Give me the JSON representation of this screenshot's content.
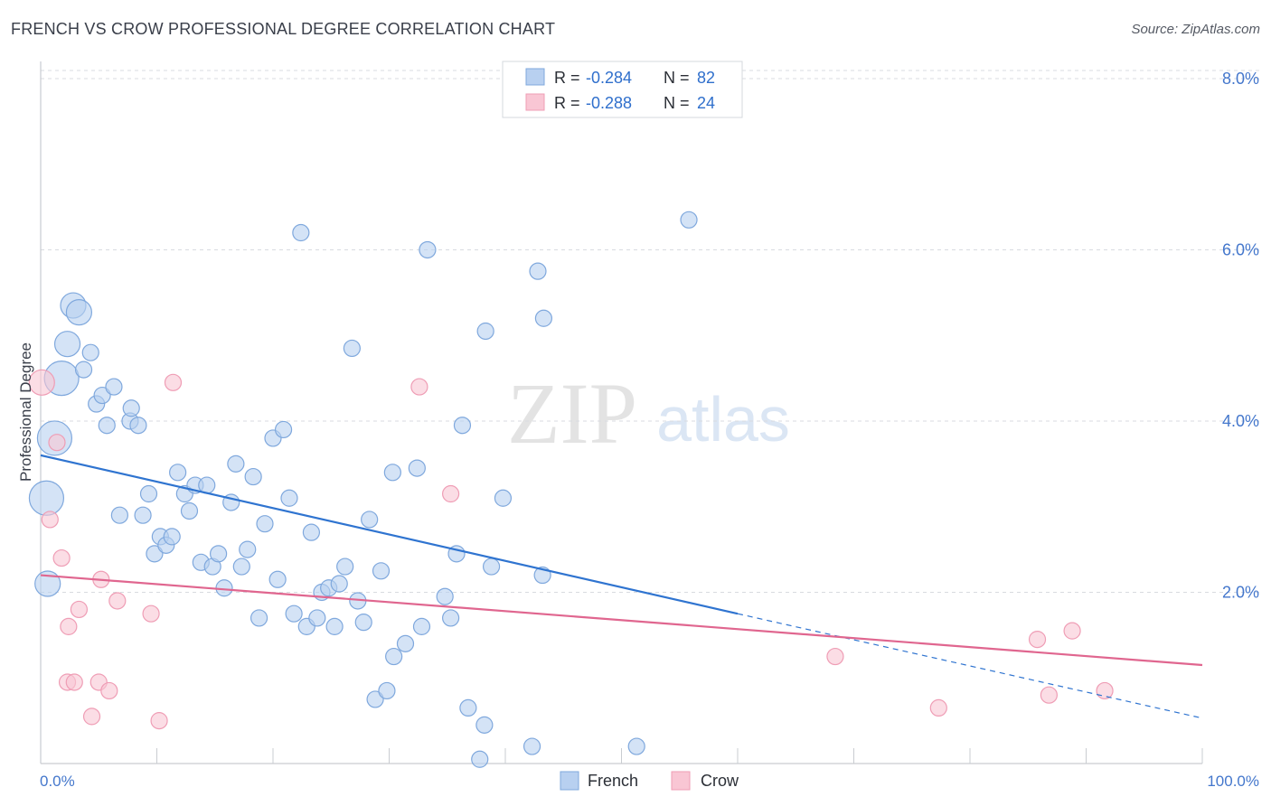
{
  "title": "FRENCH VS CROW PROFESSIONAL DEGREE CORRELATION CHART",
  "source": "Source: ZipAtlas.com",
  "colors": {
    "french_fill": "#b8d0f0",
    "french_stroke": "#7fa8dd",
    "french_line": "#2f74d0",
    "crow_fill": "#f9c6d4",
    "crow_stroke": "#ef9db5",
    "crow_line": "#e0668f",
    "tick_text": "#4477cc",
    "grid": "#d8dbe0"
  },
  "legend": {
    "rows": [
      {
        "r_label": "R =",
        "r_value": "-0.284",
        "n_label": "N =",
        "n_value": "82"
      },
      {
        "r_label": "R =",
        "r_value": "-0.288",
        "n_label": "N =",
        "n_value": "24"
      }
    ]
  },
  "watermark": {
    "zip": "ZIP",
    "atlas": "atlas"
  },
  "chart_data": {
    "type": "scatter",
    "title": "FRENCH VS CROW PROFESSIONAL DEGREE CORRELATION CHART",
    "xlabel": "",
    "ylabel": "Professional Degree",
    "xlim": [
      0,
      100
    ],
    "ylim": [
      0,
      8.2
    ],
    "x_tick_labels": [
      "0.0%",
      "100.0%"
    ],
    "y_ticks": [
      2,
      4,
      6,
      8
    ],
    "y_tick_labels": [
      "2.0%",
      "4.0%",
      "6.0%",
      "8.0%"
    ],
    "bottom_legend": [
      "French",
      "Crow"
    ],
    "series": [
      {
        "name": "French",
        "r": -0.284,
        "n": 82,
        "trend": {
          "x0": 0,
          "y0": 3.6,
          "x1": 60,
          "y1": 1.75,
          "dashed_to_x": 100,
          "dashed_to_y": 0.53
        },
        "points": [
          {
            "x": 0.5,
            "y": 3.1,
            "s": 3
          },
          {
            "x": 1.2,
            "y": 3.8,
            "s": 3
          },
          {
            "x": 1.8,
            "y": 4.5,
            "s": 3
          },
          {
            "x": 2.3,
            "y": 4.9,
            "s": 2
          },
          {
            "x": 2.8,
            "y": 5.35,
            "s": 2
          },
          {
            "x": 3.3,
            "y": 5.27,
            "s": 2
          },
          {
            "x": 0.6,
            "y": 2.1,
            "s": 2
          },
          {
            "x": 3.7,
            "y": 4.6,
            "s": 1
          },
          {
            "x": 4.3,
            "y": 4.8,
            "s": 1
          },
          {
            "x": 4.8,
            "y": 4.2,
            "s": 1
          },
          {
            "x": 5.3,
            "y": 4.3,
            "s": 1
          },
          {
            "x": 5.7,
            "y": 3.95,
            "s": 1
          },
          {
            "x": 6.3,
            "y": 4.4,
            "s": 1
          },
          {
            "x": 6.8,
            "y": 2.9,
            "s": 1
          },
          {
            "x": 7.7,
            "y": 4.0,
            "s": 1
          },
          {
            "x": 7.8,
            "y": 4.15,
            "s": 1
          },
          {
            "x": 8.4,
            "y": 3.95,
            "s": 1
          },
          {
            "x": 8.8,
            "y": 2.9,
            "s": 1
          },
          {
            "x": 9.3,
            "y": 3.15,
            "s": 1
          },
          {
            "x": 9.8,
            "y": 2.45,
            "s": 1
          },
          {
            "x": 10.3,
            "y": 2.65,
            "s": 1
          },
          {
            "x": 10.8,
            "y": 2.55,
            "s": 1
          },
          {
            "x": 11.3,
            "y": 2.65,
            "s": 1
          },
          {
            "x": 11.8,
            "y": 3.4,
            "s": 1
          },
          {
            "x": 12.4,
            "y": 3.15,
            "s": 1
          },
          {
            "x": 12.8,
            "y": 2.95,
            "s": 1
          },
          {
            "x": 13.3,
            "y": 3.25,
            "s": 1
          },
          {
            "x": 13.8,
            "y": 2.35,
            "s": 1
          },
          {
            "x": 14.3,
            "y": 3.25,
            "s": 1
          },
          {
            "x": 14.8,
            "y": 2.3,
            "s": 1
          },
          {
            "x": 15.3,
            "y": 2.45,
            "s": 1
          },
          {
            "x": 15.8,
            "y": 2.05,
            "s": 1
          },
          {
            "x": 16.4,
            "y": 3.05,
            "s": 1
          },
          {
            "x": 16.8,
            "y": 3.5,
            "s": 1
          },
          {
            "x": 17.3,
            "y": 2.3,
            "s": 1
          },
          {
            "x": 17.8,
            "y": 2.5,
            "s": 1
          },
          {
            "x": 18.3,
            "y": 3.35,
            "s": 1
          },
          {
            "x": 18.8,
            "y": 1.7,
            "s": 1
          },
          {
            "x": 19.3,
            "y": 2.8,
            "s": 1
          },
          {
            "x": 20.0,
            "y": 3.8,
            "s": 1
          },
          {
            "x": 20.4,
            "y": 2.15,
            "s": 1
          },
          {
            "x": 20.9,
            "y": 3.9,
            "s": 1
          },
          {
            "x": 21.4,
            "y": 3.1,
            "s": 1
          },
          {
            "x": 21.8,
            "y": 1.75,
            "s": 1
          },
          {
            "x": 22.4,
            "y": 6.2,
            "s": 1
          },
          {
            "x": 22.9,
            "y": 1.6,
            "s": 1
          },
          {
            "x": 23.3,
            "y": 2.7,
            "s": 1
          },
          {
            "x": 23.8,
            "y": 1.7,
            "s": 1
          },
          {
            "x": 24.2,
            "y": 2.0,
            "s": 1
          },
          {
            "x": 24.8,
            "y": 2.05,
            "s": 1
          },
          {
            "x": 25.3,
            "y": 1.6,
            "s": 1
          },
          {
            "x": 25.7,
            "y": 2.1,
            "s": 1
          },
          {
            "x": 26.2,
            "y": 2.3,
            "s": 1
          },
          {
            "x": 26.8,
            "y": 4.85,
            "s": 1
          },
          {
            "x": 27.3,
            "y": 1.9,
            "s": 1
          },
          {
            "x": 27.8,
            "y": 1.65,
            "s": 1
          },
          {
            "x": 28.3,
            "y": 2.85,
            "s": 1
          },
          {
            "x": 28.8,
            "y": 0.75,
            "s": 1
          },
          {
            "x": 29.3,
            "y": 2.25,
            "s": 1
          },
          {
            "x": 29.8,
            "y": 0.85,
            "s": 1
          },
          {
            "x": 30.3,
            "y": 3.4,
            "s": 1
          },
          {
            "x": 30.4,
            "y": 1.25,
            "s": 1
          },
          {
            "x": 31.4,
            "y": 1.4,
            "s": 1
          },
          {
            "x": 32.4,
            "y": 3.45,
            "s": 1
          },
          {
            "x": 32.8,
            "y": 1.6,
            "s": 1
          },
          {
            "x": 33.3,
            "y": 6.0,
            "s": 1
          },
          {
            "x": 34.8,
            "y": 1.95,
            "s": 1
          },
          {
            "x": 35.3,
            "y": 1.7,
            "s": 1
          },
          {
            "x": 35.8,
            "y": 2.45,
            "s": 1
          },
          {
            "x": 36.3,
            "y": 3.95,
            "s": 1
          },
          {
            "x": 36.8,
            "y": 0.65,
            "s": 1
          },
          {
            "x": 37.8,
            "y": 0.05,
            "s": 1
          },
          {
            "x": 38.2,
            "y": 0.45,
            "s": 1
          },
          {
            "x": 38.3,
            "y": 5.05,
            "s": 1
          },
          {
            "x": 38.8,
            "y": 2.3,
            "s": 1
          },
          {
            "x": 39.8,
            "y": 3.1,
            "s": 1
          },
          {
            "x": 42.3,
            "y": 0.2,
            "s": 1
          },
          {
            "x": 42.8,
            "y": 5.75,
            "s": 1
          },
          {
            "x": 43.3,
            "y": 5.2,
            "s": 1
          },
          {
            "x": 43.2,
            "y": 2.2,
            "s": 1
          },
          {
            "x": 51.3,
            "y": 0.2,
            "s": 1
          },
          {
            "x": 55.8,
            "y": 6.35,
            "s": 1
          }
        ]
      },
      {
        "name": "Crow",
        "r": -0.288,
        "n": 24,
        "trend": {
          "x0": 0,
          "y0": 2.2,
          "x1": 100,
          "y1": 1.15
        },
        "points": [
          {
            "x": 0.1,
            "y": 4.45,
            "s": 2
          },
          {
            "x": 0.8,
            "y": 2.85,
            "s": 1
          },
          {
            "x": 1.4,
            "y": 3.75,
            "s": 1
          },
          {
            "x": 1.8,
            "y": 2.4,
            "s": 1
          },
          {
            "x": 2.3,
            "y": 0.95,
            "s": 1
          },
          {
            "x": 2.4,
            "y": 1.6,
            "s": 1
          },
          {
            "x": 2.9,
            "y": 0.95,
            "s": 1
          },
          {
            "x": 3.3,
            "y": 1.8,
            "s": 1
          },
          {
            "x": 4.4,
            "y": 0.55,
            "s": 1
          },
          {
            "x": 5.0,
            "y": 0.95,
            "s": 1
          },
          {
            "x": 5.2,
            "y": 2.15,
            "s": 1
          },
          {
            "x": 5.9,
            "y": 0.85,
            "s": 1
          },
          {
            "x": 6.6,
            "y": 1.9,
            "s": 1
          },
          {
            "x": 9.5,
            "y": 1.75,
            "s": 1
          },
          {
            "x": 10.2,
            "y": 0.5,
            "s": 1
          },
          {
            "x": 11.4,
            "y": 4.45,
            "s": 1
          },
          {
            "x": 32.6,
            "y": 4.4,
            "s": 1
          },
          {
            "x": 35.3,
            "y": 3.15,
            "s": 1
          },
          {
            "x": 68.4,
            "y": 1.25,
            "s": 1
          },
          {
            "x": 77.3,
            "y": 0.65,
            "s": 1
          },
          {
            "x": 85.8,
            "y": 1.45,
            "s": 1
          },
          {
            "x": 86.8,
            "y": 0.8,
            "s": 1
          },
          {
            "x": 88.8,
            "y": 1.55,
            "s": 1
          },
          {
            "x": 91.6,
            "y": 0.85,
            "s": 1
          }
        ]
      }
    ]
  }
}
